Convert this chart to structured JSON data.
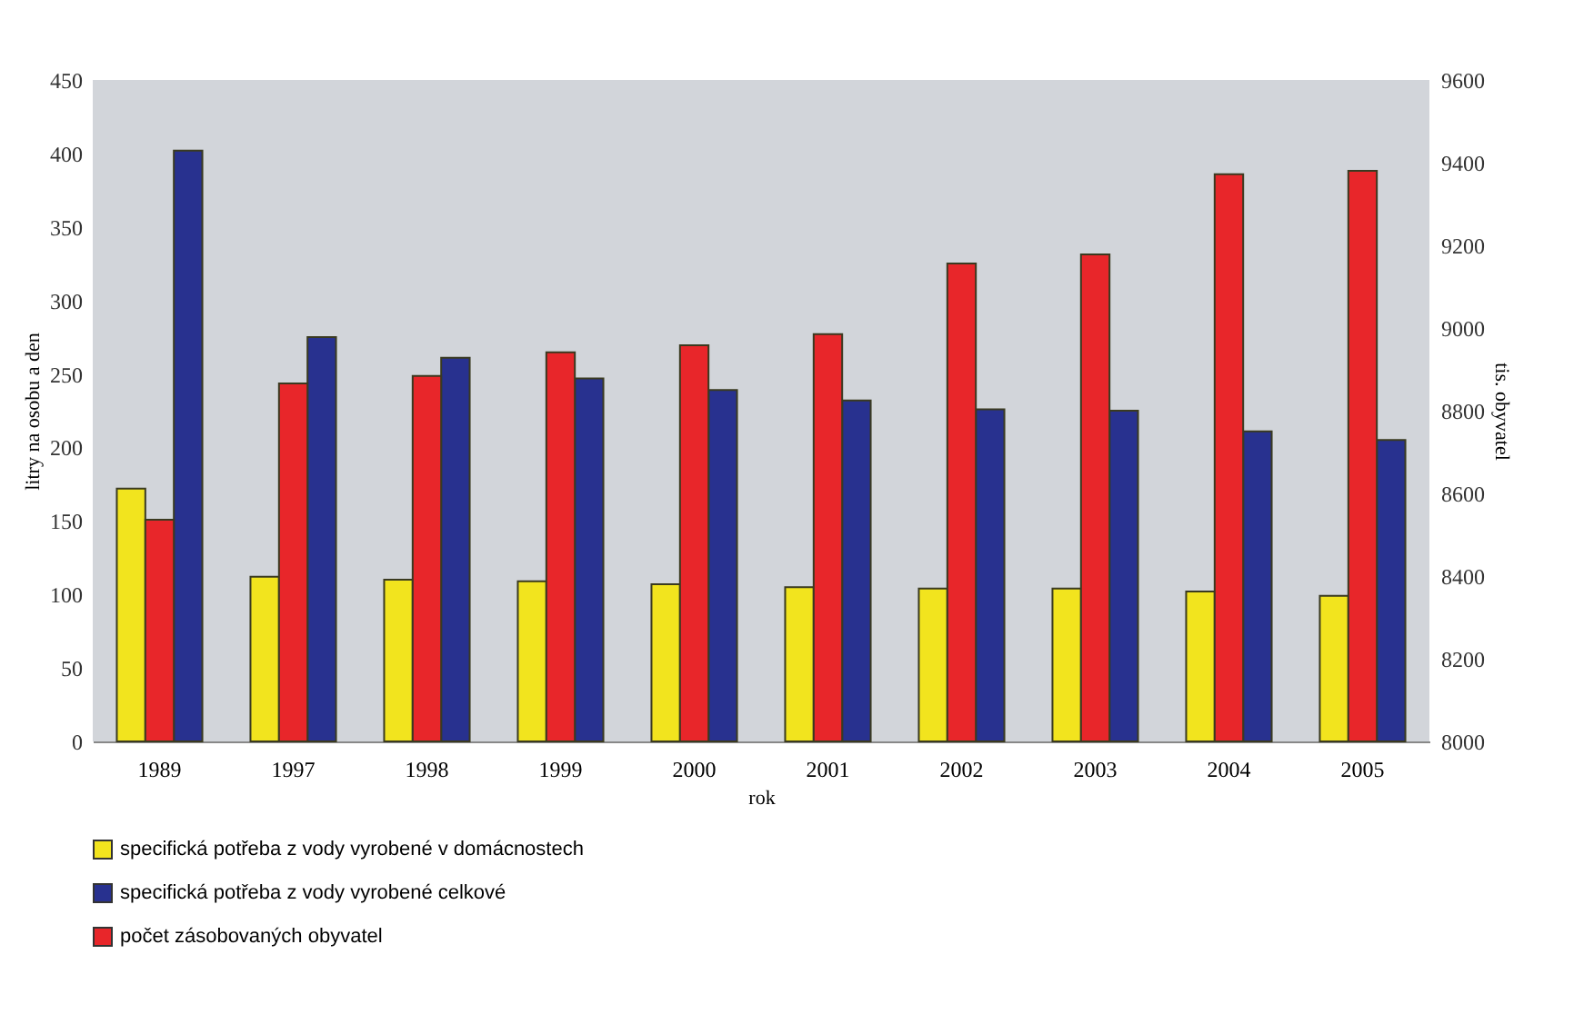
{
  "chart_data": {
    "type": "bar",
    "xlabel": "rok",
    "ylabel": "litry na osobu a den",
    "y2label": "tis. obyvatel",
    "categories": [
      "1989",
      "1997",
      "1998",
      "1999",
      "2000",
      "2001",
      "2002",
      "2003",
      "2004",
      "2005"
    ],
    "series": [
      {
        "name": "specifická potřeba z vody vyrobené v domácnostech",
        "color": "#f2e41e",
        "values": [
          172,
          112,
          110,
          109,
          107,
          105,
          104,
          104,
          102,
          99
        ]
      },
      {
        "name": "specifická potřeba z vody vyrobené celkové",
        "color": "#28318f",
        "values": [
          402,
          275,
          261,
          247,
          239,
          232,
          226,
          225,
          211,
          205
        ]
      },
      {
        "name": "počet zásobovaných obyvatel",
        "color": "#e8262a",
        "axis": "y2",
        "values": [
          8536,
          8866,
          8884,
          8941,
          8958,
          8985,
          9156,
          9178,
          9372,
          9380
        ]
      }
    ],
    "ylim": [
      0,
      450
    ],
    "yticks": [
      0,
      50,
      100,
      150,
      200,
      250,
      300,
      350,
      400,
      450
    ],
    "y2lim": [
      8000,
      9600
    ],
    "y2ticks": [
      8000,
      8200,
      8400,
      8600,
      8800,
      9000,
      9200,
      9400,
      9600
    ],
    "grid": false,
    "legend": "bottom left"
  }
}
